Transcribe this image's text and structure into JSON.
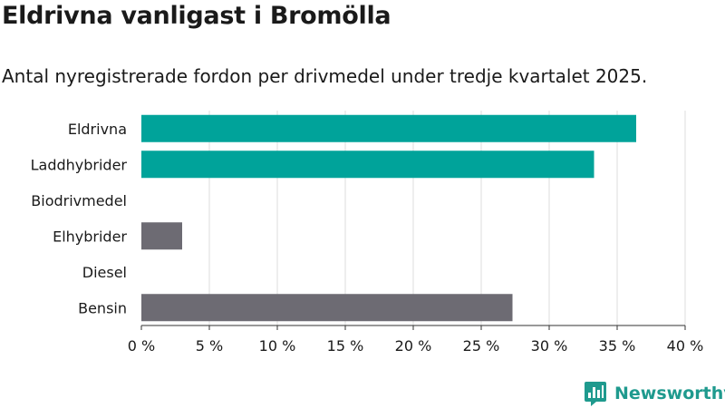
{
  "chart_data": {
    "type": "bar",
    "orientation": "horizontal",
    "title": "Eldrivna vanligast i Bromölla",
    "subtitle": "Antal nyregistrerade fordon per drivmedel under tredje kvartalet 2025.",
    "categories": [
      "Eldrivna",
      "Laddhybrider",
      "Biodrivmedel",
      "Elhybrider",
      "Diesel",
      "Bensin"
    ],
    "values": [
      36.4,
      33.3,
      0,
      3.0,
      0,
      27.3
    ],
    "bar_colors": [
      "#00a39a",
      "#00a39a",
      "#00a39a",
      "#6d6b73",
      "#6d6b73",
      "#6d6b73"
    ],
    "x_ticks": [
      0,
      5,
      10,
      15,
      20,
      25,
      30,
      35,
      40
    ],
    "x_tick_labels": [
      "0 %",
      "5 %",
      "10 %",
      "15 %",
      "20 %",
      "25 %",
      "30 %",
      "35 %",
      "40 %"
    ],
    "xlim": [
      0,
      40
    ],
    "grid": true
  },
  "brand": {
    "name": "Newsworthy",
    "icon": "newsworthy-logo-icon",
    "color": "#1f9a8e"
  }
}
